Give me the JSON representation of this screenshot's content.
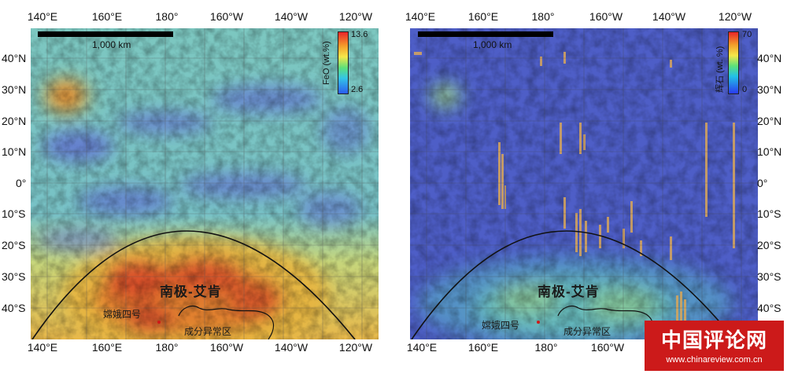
{
  "ticks": {
    "lon_top": [
      "140°E",
      "160°E",
      "180°",
      "160°W",
      "140°W",
      "120°W"
    ],
    "lon_bottom": [
      "140°E",
      "160°E",
      "180°",
      "160°W",
      "140°W",
      "120°W"
    ],
    "lat": [
      "40°N",
      "30°N",
      "20°N",
      "10°N",
      "0°",
      "10°S",
      "20°S",
      "30°S",
      "40°S"
    ]
  },
  "left_panel": {
    "scale_label": "1,000 km",
    "colorbar_title": "FeO (wt.%)",
    "colorbar_max": "13.6",
    "colorbar_min": "2.6",
    "region_label": "南极-艾肯",
    "site_label": "嫦娥四号",
    "anomaly_label": "成分异常区"
  },
  "right_panel": {
    "scale_label": "1,000 km",
    "colorbar_title": "辉石 (wt. %)",
    "colorbar_max": "70",
    "colorbar_min": "0",
    "region_label": "南极-艾肯",
    "site_label": "嫦娥四号",
    "anomaly_label": "成分异常区"
  },
  "watermark": {
    "brand": "中国评论网",
    "url": "www.chinareview.com.cn"
  },
  "colors": {
    "feo_low": "#4a5fd6",
    "feo_mid": "#6ec3c0",
    "feo_high": "#d9472a",
    "pyroxene_bg": "#4e5ec7",
    "watermark_red": "#cc1a1a"
  }
}
